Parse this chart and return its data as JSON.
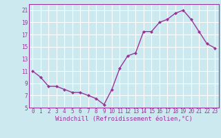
{
  "x": [
    0,
    1,
    2,
    3,
    4,
    5,
    6,
    7,
    8,
    9,
    10,
    11,
    12,
    13,
    14,
    15,
    16,
    17,
    18,
    19,
    20,
    21,
    22,
    23
  ],
  "y": [
    11,
    10,
    8.5,
    8.5,
    8,
    7.5,
    7.5,
    7,
    6.5,
    5.5,
    8,
    11.5,
    13.5,
    14,
    17.5,
    17.5,
    19,
    19.5,
    20.5,
    21,
    19.5,
    17.5,
    15.5,
    14.8
  ],
  "line_color": "#993399",
  "marker": "D",
  "marker_size": 2,
  "bg_color": "#cce9f0",
  "grid_color": "#ffffff",
  "xlabel": "Windchill (Refroidissement éolien,°C)",
  "xlabel_color": "#993399",
  "xlabel_fontsize": 6.5,
  "tick_color": "#993399",
  "tick_fontsize": 5.5,
  "ylim": [
    5,
    22
  ],
  "xlim": [
    -0.5,
    23.5
  ],
  "yticks": [
    5,
    7,
    9,
    11,
    13,
    15,
    17,
    19,
    21
  ],
  "xticks": [
    0,
    1,
    2,
    3,
    4,
    5,
    6,
    7,
    8,
    9,
    10,
    11,
    12,
    13,
    14,
    15,
    16,
    17,
    18,
    19,
    20,
    21,
    22,
    23
  ],
  "spine_color": "#993399",
  "linewidth": 1.0
}
